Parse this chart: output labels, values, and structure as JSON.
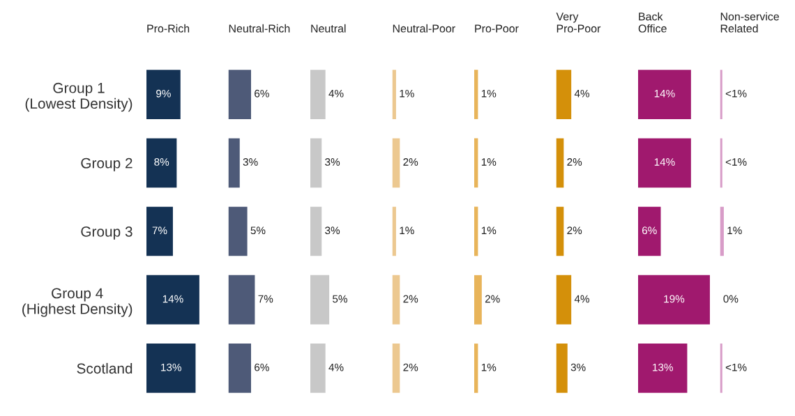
{
  "chart_data": [
    {
      "type": "bar",
      "orientation": "horizontal",
      "title": "Pro-Rich",
      "categories": [
        "Group 1\n(Lowest Density)",
        "Group 2",
        "Group 3",
        "Group 4\n(Highest Density)",
        "Scotland"
      ],
      "values": [
        9,
        8,
        7,
        14,
        13
      ],
      "value_labels": [
        "9%",
        "8%",
        "7%",
        "14%",
        "13%"
      ],
      "color": "#143254",
      "tick_labels": "y"
    },
    {
      "type": "bar",
      "orientation": "horizontal",
      "title": "Neutral-Rich",
      "values": [
        6,
        3,
        5,
        7,
        6
      ],
      "value_labels": [
        "6%",
        "3%",
        "5%",
        "7%",
        "6%"
      ],
      "color": "#4e5a78",
      "tick_labels": false
    },
    {
      "type": "bar",
      "orientation": "horizontal",
      "title": "Neutral",
      "values": [
        4,
        3,
        3,
        5,
        4
      ],
      "value_labels": [
        "4%",
        "3%",
        "3%",
        "5%",
        "4%"
      ],
      "color": "#c8c8c8",
      "tick_labels": false
    },
    {
      "type": "bar",
      "orientation": "horizontal",
      "title": "Neutral-Poor",
      "values": [
        1,
        2,
        1,
        2,
        2
      ],
      "value_labels": [
        "1%",
        "2%",
        "1%",
        "2%",
        "2%"
      ],
      "color": "#ecc890",
      "tick_labels": false
    },
    {
      "type": "bar",
      "orientation": "horizontal",
      "title": "Pro-Poor",
      "values": [
        1,
        1,
        1,
        2,
        1
      ],
      "value_labels": [
        "1%",
        "1%",
        "1%",
        "2%",
        "1%"
      ],
      "color": "#e8b45a",
      "tick_labels": false
    },
    {
      "type": "bar",
      "orientation": "horizontal",
      "title": "Very\nPro-Poor",
      "values": [
        4,
        2,
        2,
        4,
        3
      ],
      "value_labels": [
        "4%",
        "2%",
        "2%",
        "4%",
        "3%"
      ],
      "color": "#d4900a",
      "tick_labels": false
    },
    {
      "type": "bar",
      "orientation": "horizontal",
      "title": "Back\nOffice",
      "values": [
        14,
        14,
        6,
        19,
        13
      ],
      "value_labels": [
        "14%",
        "14%",
        "6%",
        "19%",
        "13%"
      ],
      "color": "#a0196e",
      "tick_labels": false
    },
    {
      "type": "bar",
      "orientation": "horizontal",
      "title": "Non-service\nRelated",
      "values": [
        0.6,
        0.6,
        1,
        0,
        0.6
      ],
      "value_labels": [
        "<1%",
        "<1%",
        "1%",
        "0%",
        "<1%"
      ],
      "color": "#d89cc8",
      "tick_labels": false
    }
  ]
}
